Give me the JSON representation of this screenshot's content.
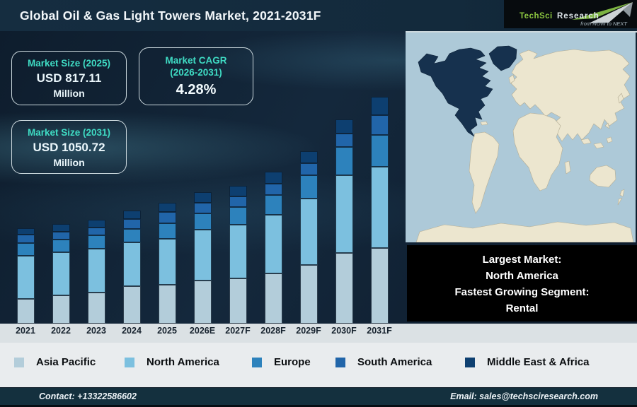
{
  "header": {
    "title": "Global Oil & Gas Light Towers Market, 2021-2031F"
  },
  "logo": {
    "brand_part1": "TechSci",
    "brand_part2": "Research",
    "tagline": "from NOW to NEXT",
    "accent_green": "#7cb342"
  },
  "stats": {
    "market_size_2025": {
      "label": "Market Size (2025)",
      "value": "USD 817.11",
      "unit": "Million"
    },
    "market_cagr": {
      "label_line1": "Market CAGR",
      "label_line2": "(2026-2031)",
      "value": "4.28%"
    },
    "market_size_2031": {
      "label": "Market Size (2031)",
      "value": "USD 1050.72",
      "unit": "Million"
    }
  },
  "callout": {
    "line1": "Largest Market:",
    "line2": "North America",
    "line3": "Fastest Growing Segment:",
    "line4": "Rental"
  },
  "footer": {
    "contact": "Contact: +13322586602",
    "email": "Email: sales@techsciresearch.com"
  },
  "colors": {
    "header_bg": "#132a3c",
    "footer_bg": "#14303e",
    "axis_strip_bg": "#dbe1e4",
    "legend_bg": "#e9ecee",
    "callout_bg": "#000000",
    "accent_teal": "#3fdcc4",
    "map_ocean": "#adc9d8",
    "map_land": "#ece6cf",
    "map_highlight": "#16314e"
  },
  "chart_data": {
    "type": "bar",
    "subtype": "stacked-vertical",
    "title": "Global Oil & Gas Light Towers Market, 2021-2031F",
    "xlabel": "",
    "ylabel": "",
    "value_units": "relative bar height in pixels (source chart shows no y-axis scale)",
    "grid": false,
    "legend_position": "bottom",
    "categories": [
      "2021",
      "2022",
      "2023",
      "2024",
      "2025",
      "2026E",
      "2027F",
      "2028F",
      "2029F",
      "2030F",
      "2031F"
    ],
    "series": [
      {
        "name": "Asia Pacific",
        "color": "#b3cdda",
        "values": [
          35,
          40,
          44,
          53,
          55,
          61,
          64,
          71,
          83,
          100,
          107
        ]
      },
      {
        "name": "North America",
        "color": "#7cc0df",
        "values": [
          61,
          61,
          62,
          62,
          65,
          72,
          76,
          83,
          94,
          110,
          115
        ]
      },
      {
        "name": "Europe",
        "color": "#2d82bc",
        "values": [
          18,
          18,
          19,
          19,
          22,
          23,
          25,
          28,
          33,
          40,
          45
        ]
      },
      {
        "name": "South America",
        "color": "#2165a9",
        "values": [
          12,
          11,
          11,
          14,
          16,
          15,
          15,
          16,
          17,
          19,
          28
        ]
      },
      {
        "name": "Middle East & Africa",
        "color": "#0d3f70",
        "values": [
          9,
          11,
          11,
          12,
          13,
          15,
          15,
          17,
          17,
          20,
          26
        ]
      }
    ],
    "annotations": {
      "market_size_2025_musd": 817.11,
      "market_size_2031_musd": 1050.72,
      "cagr_2026_2031_pct": 4.28,
      "largest_market": "North America",
      "fastest_growing_segment": "Rental"
    }
  }
}
